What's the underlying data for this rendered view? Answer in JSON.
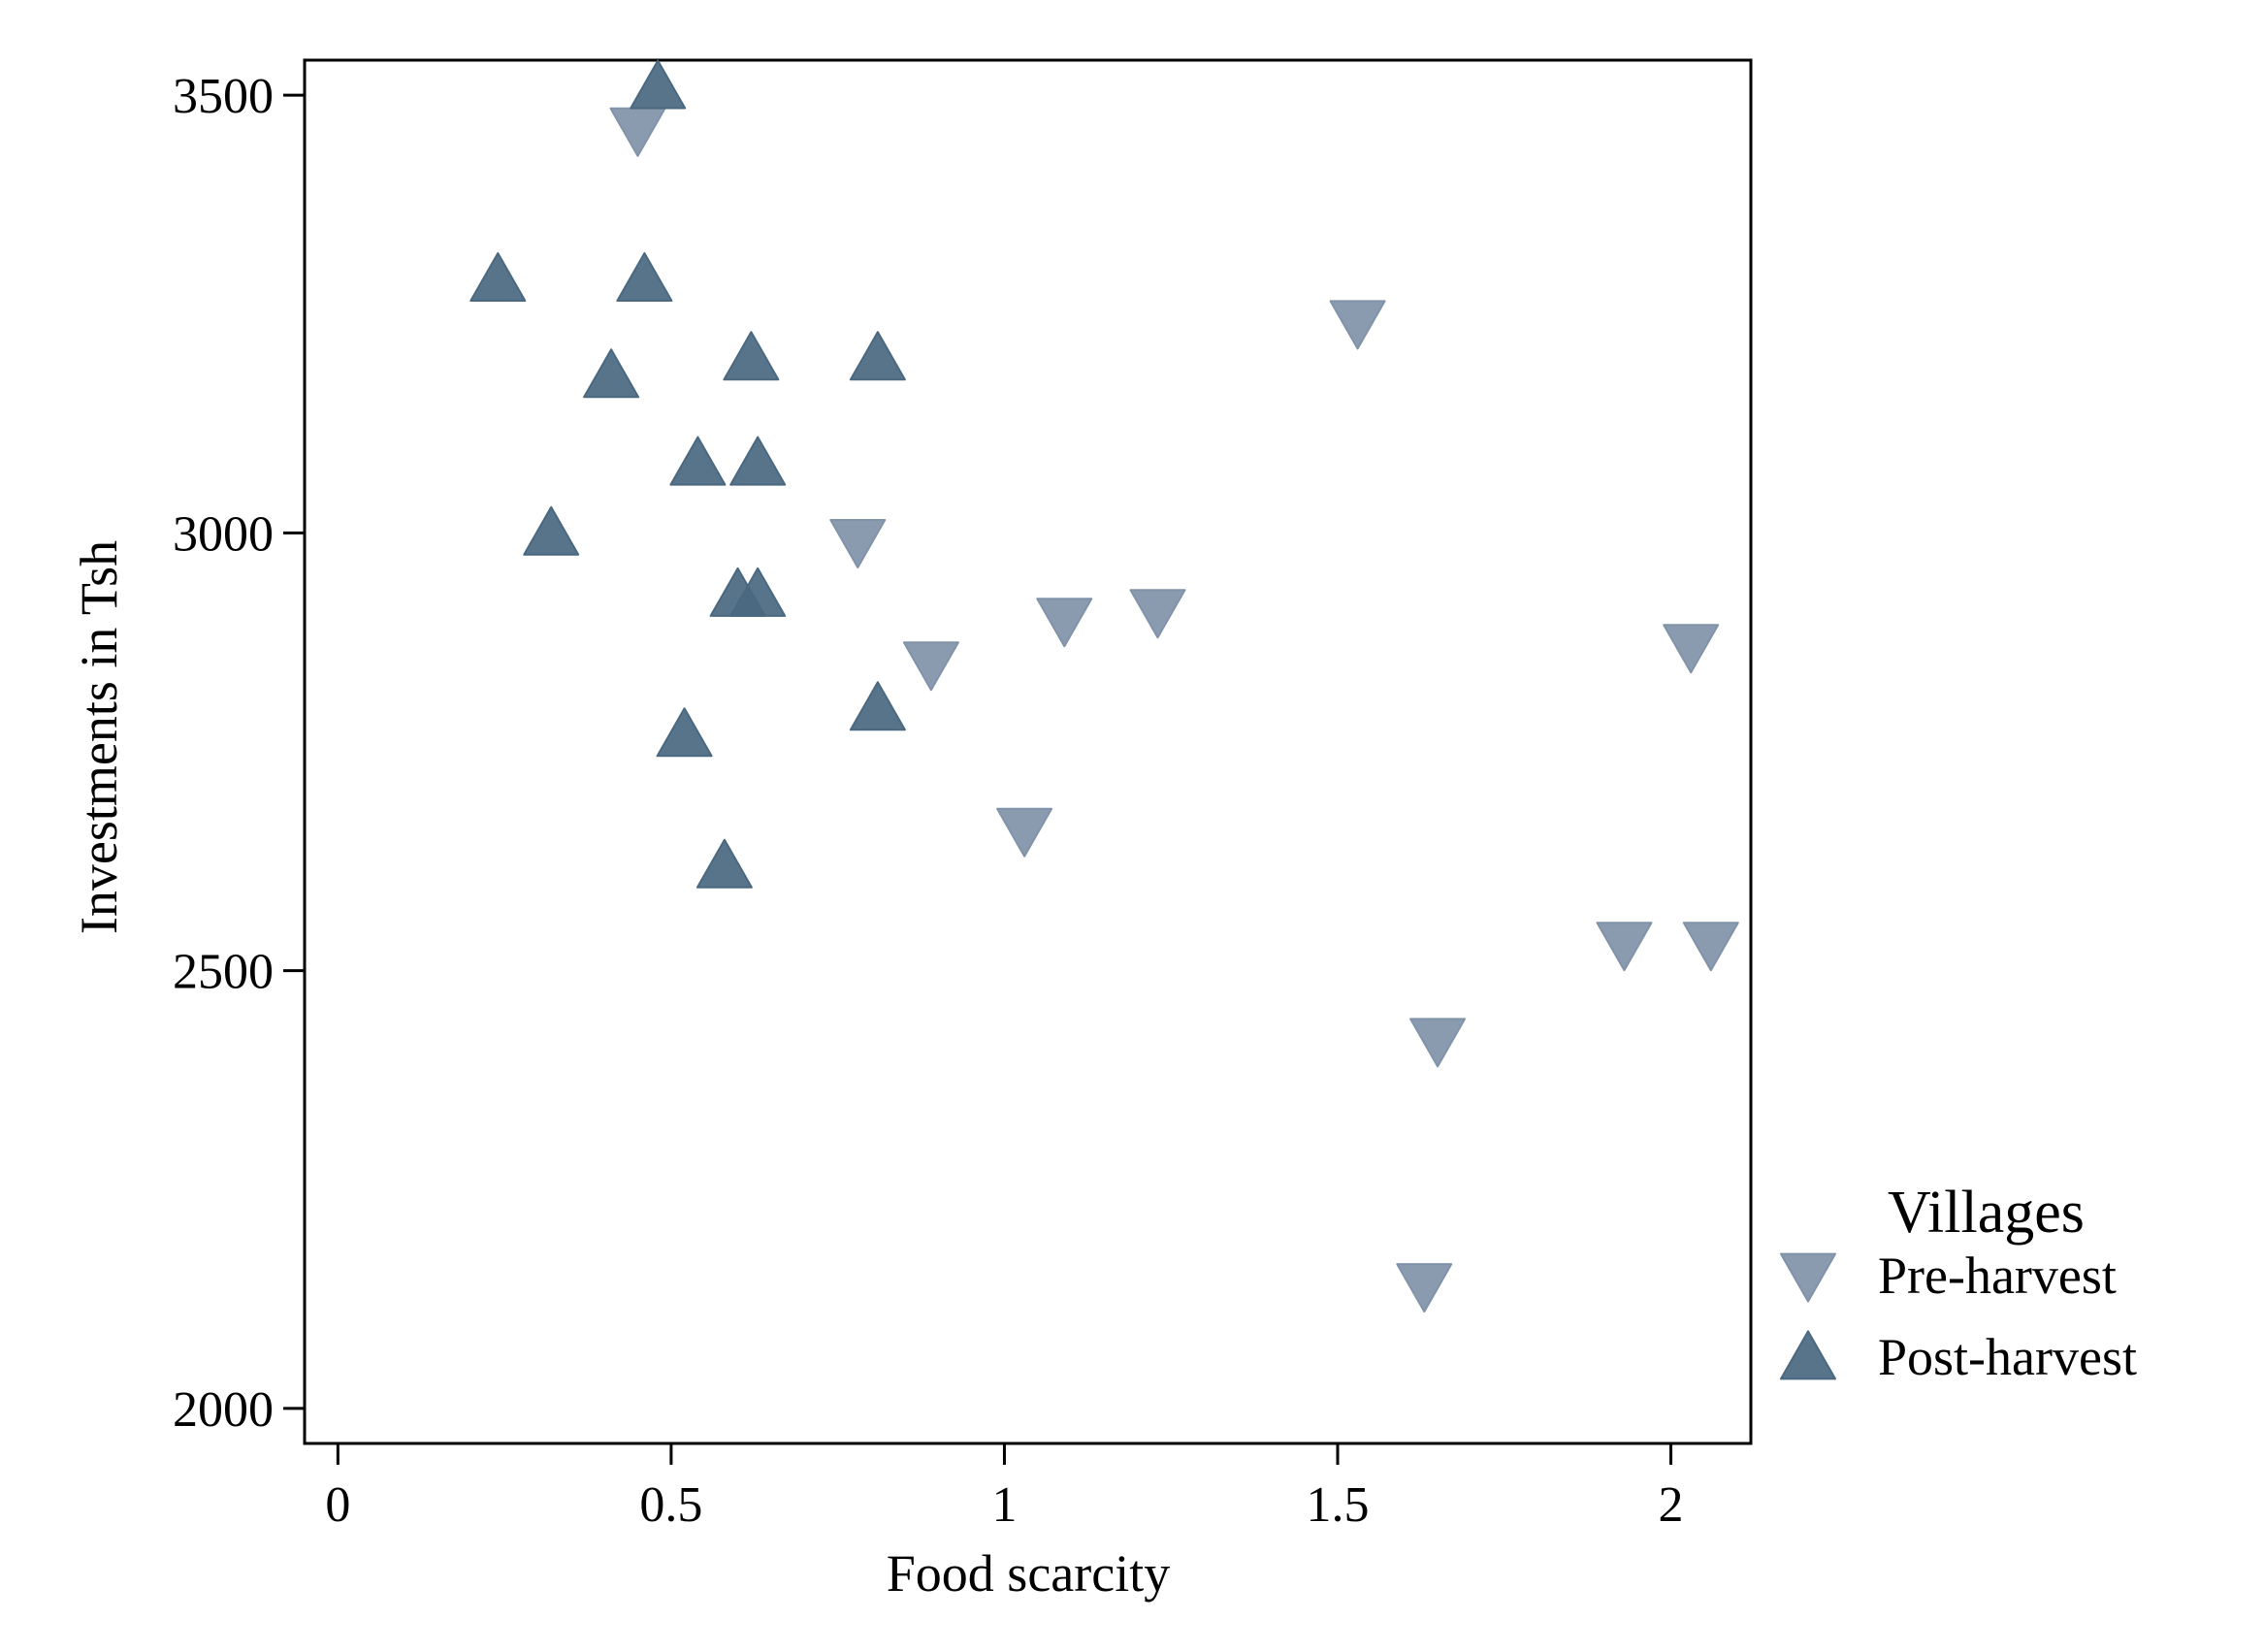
{
  "chart_data": {
    "type": "scatter",
    "title": "",
    "xlabel": "Food scarcity",
    "ylabel": "Investments in Tsh",
    "xlim": [
      -0.05,
      2.12
    ],
    "ylim": [
      1960,
      3540
    ],
    "x_ticks": [
      0,
      0.5,
      1,
      1.5,
      2
    ],
    "x_tick_labels": [
      "0",
      "0.5",
      "1",
      "1.5",
      "2"
    ],
    "y_ticks": [
      2000,
      2500,
      3000,
      3500
    ],
    "y_tick_labels": [
      "2000",
      "2500",
      "3000",
      "3500"
    ],
    "grid": false,
    "legend": {
      "title": "Villages",
      "position": "right"
    },
    "series": [
      {
        "name": "Pre-harvest",
        "marker": "triangle-down",
        "color": "#8093A8",
        "points": [
          {
            "x": 0.45,
            "y": 3460
          },
          {
            "x": 0.78,
            "y": 2990
          },
          {
            "x": 0.89,
            "y": 2850
          },
          {
            "x": 1.03,
            "y": 2660
          },
          {
            "x": 1.09,
            "y": 2900
          },
          {
            "x": 1.23,
            "y": 2910
          },
          {
            "x": 1.53,
            "y": 3240
          },
          {
            "x": 1.63,
            "y": 2140
          },
          {
            "x": 1.65,
            "y": 2420
          },
          {
            "x": 1.93,
            "y": 2530
          },
          {
            "x": 2.03,
            "y": 2870
          },
          {
            "x": 2.06,
            "y": 2530
          }
        ]
      },
      {
        "name": "Post-harvest",
        "marker": "triangle-up",
        "color": "#4A6880",
        "points": [
          {
            "x": 0.24,
            "y": 3290
          },
          {
            "x": 0.32,
            "y": 3000
          },
          {
            "x": 0.41,
            "y": 3180
          },
          {
            "x": 0.46,
            "y": 3290
          },
          {
            "x": 0.48,
            "y": 3510
          },
          {
            "x": 0.52,
            "y": 2770
          },
          {
            "x": 0.54,
            "y": 3080
          },
          {
            "x": 0.58,
            "y": 2620
          },
          {
            "x": 0.6,
            "y": 2930
          },
          {
            "x": 0.62,
            "y": 3200
          },
          {
            "x": 0.63,
            "y": 2930
          },
          {
            "x": 0.63,
            "y": 3080
          },
          {
            "x": 0.81,
            "y": 2800
          },
          {
            "x": 0.81,
            "y": 3200
          }
        ]
      }
    ]
  }
}
